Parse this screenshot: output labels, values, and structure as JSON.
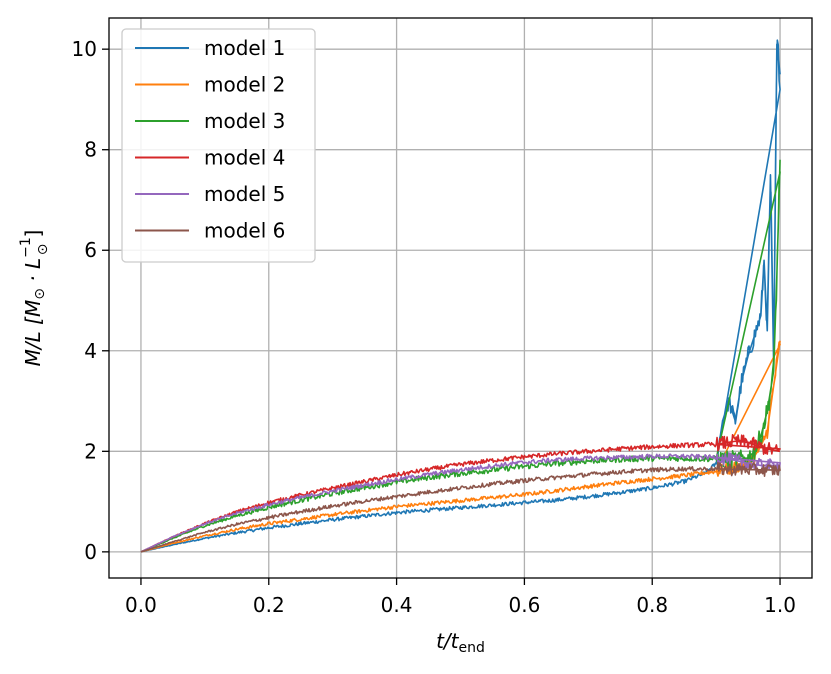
{
  "chart_data": {
    "type": "line",
    "xlabel_main": "t/t",
    "xlabel_sub": "end",
    "ylabel_main": "M/L [M",
    "ylabel_sun_sub": "⊙",
    "ylabel_mid": " · L",
    "ylabel_sup": "−1",
    "ylabel_close": "]",
    "xlim": [
      -0.05,
      1.05
    ],
    "ylim": [
      -0.52,
      10.62
    ],
    "grid": true,
    "legend_position": "top-left",
    "x_ticks": [
      0.0,
      0.2,
      0.4,
      0.6,
      0.8,
      1.0
    ],
    "x_tick_labels": [
      "0.0",
      "0.2",
      "0.4",
      "0.6",
      "0.8",
      "1.0"
    ],
    "y_ticks": [
      0,
      2,
      4,
      6,
      8,
      10
    ],
    "y_tick_labels": [
      "0",
      "2",
      "4",
      "6",
      "8",
      "10"
    ],
    "series": [
      {
        "name": "model 1",
        "color": "#1f77b4",
        "noise": 0.03,
        "x": [
          0,
          0.05,
          0.1,
          0.15,
          0.2,
          0.25,
          0.3,
          0.35,
          0.4,
          0.45,
          0.5,
          0.55,
          0.6,
          0.65,
          0.7,
          0.75,
          0.8,
          0.85,
          0.88,
          0.9,
          0.91,
          0.92,
          0.93,
          0.94,
          0.95,
          0.96,
          0.97,
          0.975,
          0.98,
          0.985,
          0.99,
          0.995,
          1.0
        ],
        "y": [
          0,
          0.14,
          0.27,
          0.38,
          0.48,
          0.56,
          0.64,
          0.71,
          0.78,
          0.83,
          0.88,
          0.93,
          0.98,
          1.03,
          1.1,
          1.18,
          1.27,
          1.4,
          1.55,
          1.75,
          2.6,
          3.0,
          2.6,
          3.4,
          3.9,
          4.3,
          4.7,
          5.8,
          4.4,
          7.5,
          3.7,
          10.1,
          9.5
        ]
      },
      {
        "name": "model 2",
        "color": "#ff7f0e",
        "noise": 0.03,
        "x": [
          0,
          0.05,
          0.1,
          0.15,
          0.2,
          0.25,
          0.3,
          0.35,
          0.4,
          0.45,
          0.5,
          0.55,
          0.6,
          0.65,
          0.7,
          0.75,
          0.8,
          0.85,
          0.9,
          0.92,
          0.94,
          0.95,
          0.96,
          0.97,
          0.98,
          0.99,
          1.0
        ],
        "y": [
          0,
          0.17,
          0.32,
          0.45,
          0.56,
          0.65,
          0.74,
          0.82,
          0.9,
          0.96,
          1.02,
          1.08,
          1.14,
          1.22,
          1.3,
          1.38,
          1.45,
          1.52,
          1.6,
          1.65,
          1.72,
          1.78,
          1.9,
          2.1,
          2.4,
          3.3,
          4.2
        ]
      },
      {
        "name": "model 3",
        "color": "#2ca02c",
        "noise": 0.04,
        "x": [
          0,
          0.05,
          0.1,
          0.15,
          0.2,
          0.25,
          0.3,
          0.35,
          0.4,
          0.45,
          0.5,
          0.55,
          0.6,
          0.65,
          0.7,
          0.75,
          0.8,
          0.85,
          0.9,
          0.92,
          0.94,
          0.95,
          0.96,
          0.97,
          0.98,
          0.99,
          0.995,
          1.0
        ],
        "y": [
          0,
          0.27,
          0.52,
          0.72,
          0.89,
          1.03,
          1.16,
          1.28,
          1.39,
          1.48,
          1.56,
          1.63,
          1.7,
          1.76,
          1.81,
          1.84,
          1.86,
          1.86,
          1.85,
          1.84,
          1.85,
          1.87,
          2.0,
          2.3,
          2.8,
          3.6,
          5.5,
          7.8
        ]
      },
      {
        "name": "model 4",
        "color": "#d62728",
        "noise": 0.03,
        "x": [
          0,
          0.05,
          0.1,
          0.15,
          0.2,
          0.25,
          0.3,
          0.35,
          0.4,
          0.45,
          0.5,
          0.55,
          0.6,
          0.65,
          0.7,
          0.75,
          0.8,
          0.85,
          0.9,
          0.93,
          0.95,
          0.97,
          0.99,
          1.0
        ],
        "y": [
          0,
          0.3,
          0.57,
          0.8,
          0.98,
          1.13,
          1.27,
          1.4,
          1.53,
          1.64,
          1.74,
          1.82,
          1.89,
          1.95,
          2.0,
          2.05,
          2.09,
          2.12,
          2.14,
          2.2,
          2.18,
          2.08,
          2.02,
          2.0
        ]
      },
      {
        "name": "model 5",
        "color": "#9467bd",
        "noise": 0.03,
        "x": [
          0,
          0.05,
          0.1,
          0.15,
          0.2,
          0.25,
          0.3,
          0.35,
          0.4,
          0.45,
          0.5,
          0.55,
          0.6,
          0.65,
          0.7,
          0.75,
          0.8,
          0.85,
          0.9,
          0.93,
          0.95,
          0.97,
          0.99,
          1.0
        ],
        "y": [
          0,
          0.3,
          0.56,
          0.77,
          0.94,
          1.08,
          1.21,
          1.33,
          1.44,
          1.54,
          1.63,
          1.71,
          1.78,
          1.83,
          1.86,
          1.88,
          1.9,
          1.9,
          1.88,
          1.82,
          1.76,
          1.72,
          1.72,
          1.73
        ]
      },
      {
        "name": "model 6",
        "color": "#8c564b",
        "noise": 0.03,
        "x": [
          0,
          0.05,
          0.1,
          0.15,
          0.2,
          0.25,
          0.3,
          0.35,
          0.4,
          0.45,
          0.5,
          0.55,
          0.6,
          0.65,
          0.7,
          0.75,
          0.8,
          0.85,
          0.9,
          0.93,
          0.95,
          0.97,
          0.99,
          1.0
        ],
        "y": [
          0,
          0.2,
          0.39,
          0.55,
          0.68,
          0.8,
          0.91,
          1.01,
          1.1,
          1.19,
          1.27,
          1.35,
          1.42,
          1.48,
          1.54,
          1.59,
          1.63,
          1.65,
          1.65,
          1.64,
          1.64,
          1.63,
          1.63,
          1.62
        ]
      }
    ]
  }
}
